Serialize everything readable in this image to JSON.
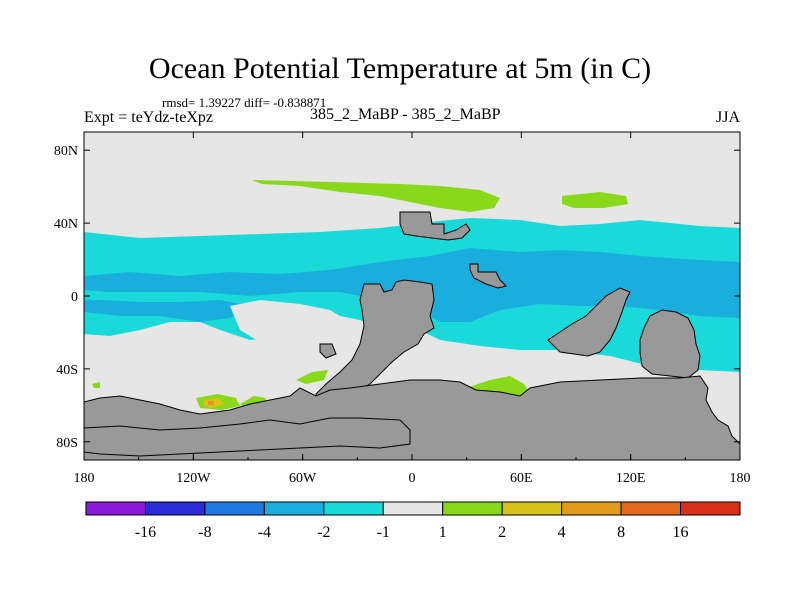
{
  "title": "Ocean Potential Temperature at 5m (in C)",
  "stats": "rmsd= 1.39227 diff= -0.838871",
  "experiment": "Expt = teYdz-teXpz",
  "subtitle": "385_2_MaBP - 385_2_MaBP",
  "season": "JJA",
  "map": {
    "lon_range": [
      -180,
      180
    ],
    "lat_range": [
      -90,
      90
    ],
    "x_ticks": [
      {
        "value": -180,
        "label": "180"
      },
      {
        "value": -120,
        "label": "120W"
      },
      {
        "value": -60,
        "label": "60W"
      },
      {
        "value": 0,
        "label": "0"
      },
      {
        "value": 60,
        "label": "60E"
      },
      {
        "value": 120,
        "label": "120E"
      },
      {
        "value": 180,
        "label": "180"
      }
    ],
    "y_ticks": [
      {
        "value": 80,
        "label": "80N"
      },
      {
        "value": 40,
        "label": "40N"
      },
      {
        "value": 0,
        "label": "0"
      },
      {
        "value": -40,
        "label": "40S"
      },
      {
        "value": -80,
        "label": "80S"
      }
    ],
    "colors": {
      "neutral": "#e6e6e6",
      "land": "#999999",
      "cool1": "#1ad9d9",
      "cool2": "#19aedd",
      "warm1": "#8ad81a",
      "warm2": "#d8c21a",
      "warm3": "#e09a1c"
    }
  },
  "colorbar": {
    "colors": [
      "#8a1ad8",
      "#2b2bd8",
      "#1e7ae0",
      "#19aedd",
      "#1ad9d9",
      "#e6e6e6",
      "#8ad81a",
      "#d8c21a",
      "#e09a1c",
      "#e0691c",
      "#d8301a"
    ],
    "labels": [
      "-16",
      "-8",
      "-4",
      "-2",
      "-1",
      "1",
      "2",
      "4",
      "8",
      "16"
    ]
  }
}
